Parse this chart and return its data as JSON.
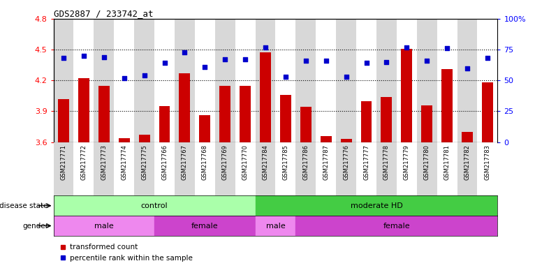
{
  "title": "GDS2887 / 233742_at",
  "samples": [
    "GSM217771",
    "GSM217772",
    "GSM217773",
    "GSM217774",
    "GSM217775",
    "GSM217766",
    "GSM217767",
    "GSM217768",
    "GSM217769",
    "GSM217770",
    "GSM217784",
    "GSM217785",
    "GSM217786",
    "GSM217787",
    "GSM217776",
    "GSM217777",
    "GSM217778",
    "GSM217779",
    "GSM217780",
    "GSM217781",
    "GSM217782",
    "GSM217783"
  ],
  "bar_values": [
    4.02,
    4.22,
    4.15,
    3.64,
    3.67,
    3.95,
    4.27,
    3.86,
    4.15,
    4.15,
    4.47,
    4.06,
    3.94,
    3.66,
    3.63,
    4.0,
    4.04,
    4.51,
    3.96,
    4.31,
    3.7,
    4.18
  ],
  "dot_percentiles": [
    68,
    70,
    69,
    52,
    54,
    64,
    73,
    61,
    67,
    67,
    77,
    53,
    66,
    66,
    53,
    64,
    65,
    77,
    66,
    76,
    60,
    68
  ],
  "ylim_left": [
    3.6,
    4.8
  ],
  "ylim_right": [
    0,
    100
  ],
  "yticks_left": [
    3.6,
    3.9,
    4.2,
    4.5,
    4.8
  ],
  "yticks_right": [
    0,
    25,
    50,
    75,
    100
  ],
  "ytick_labels_left": [
    "3.6",
    "3.9",
    "4.2",
    "4.5",
    "4.8"
  ],
  "ytick_labels_right": [
    "0",
    "25",
    "50",
    "75",
    "100%"
  ],
  "hlines": [
    3.9,
    4.2,
    4.5
  ],
  "bar_color": "#cc0000",
  "dot_color": "#0000cc",
  "disease_state_groups": [
    {
      "label": "control",
      "start": 0,
      "end": 10,
      "color": "#aaffaa"
    },
    {
      "label": "moderate HD",
      "start": 10,
      "end": 22,
      "color": "#44cc44"
    }
  ],
  "gender_groups": [
    {
      "label": "male",
      "start": 0,
      "end": 5,
      "color": "#ee88ee"
    },
    {
      "label": "female",
      "start": 5,
      "end": 10,
      "color": "#cc44cc"
    },
    {
      "label": "male",
      "start": 10,
      "end": 12,
      "color": "#ee88ee"
    },
    {
      "label": "female",
      "start": 12,
      "end": 22,
      "color": "#cc44cc"
    }
  ],
  "legend_bar_label": "transformed count",
  "legend_dot_label": "percentile rank within the sample",
  "bg_color": "#ffffff",
  "row_bg_colors": [
    "#d8d8d8",
    "#ffffff"
  ],
  "bar_width": 0.55
}
